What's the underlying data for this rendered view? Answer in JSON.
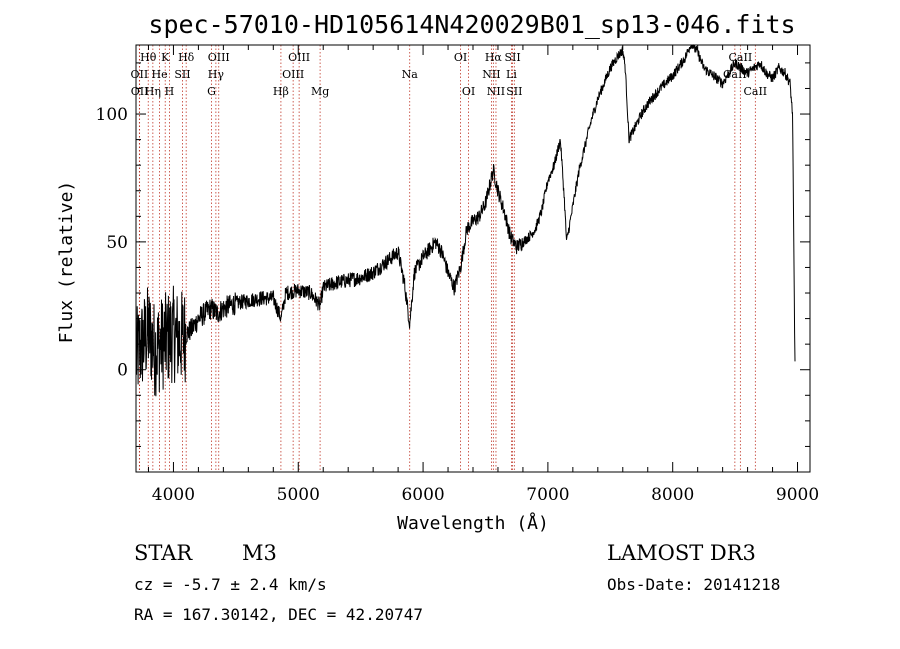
{
  "chart_data": {
    "type": "line",
    "title": "spec-57010-HD105614N420029B01_sp13-046.fits",
    "xlabel": "Wavelength (Å)",
    "ylabel": "Flux (relative)",
    "xlim": [
      3700,
      9100
    ],
    "ylim": [
      -40,
      127
    ],
    "xticks": [
      4000,
      5000,
      6000,
      7000,
      8000,
      9000
    ],
    "yticks": [
      0,
      50,
      100
    ],
    "grid": false,
    "spectrum_knots": {
      "x": [
        3700,
        3750,
        3800,
        3850,
        3900,
        3950,
        4000,
        4050,
        4100,
        4150,
        4200,
        4250,
        4300,
        4350,
        4400,
        4500,
        4600,
        4700,
        4800,
        4862,
        4900,
        5000,
        5100,
        5175,
        5200,
        5300,
        5400,
        5500,
        5600,
        5700,
        5800,
        5850,
        5893,
        5930,
        6000,
        6100,
        6150,
        6200,
        6250,
        6300,
        6350,
        6400,
        6450,
        6500,
        6563,
        6600,
        6650,
        6700,
        6750,
        6800,
        6850,
        6900,
        6950,
        7000,
        7050,
        7100,
        7130,
        7150,
        7200,
        7250,
        7300,
        7350,
        7400,
        7450,
        7500,
        7550,
        7600,
        7620,
        7650,
        7700,
        7750,
        7800,
        7900,
        8000,
        8100,
        8150,
        8200,
        8250,
        8300,
        8350,
        8400,
        8450,
        8500,
        8550,
        8600,
        8650,
        8700,
        8750,
        8800,
        8850,
        8900,
        8940,
        8960,
        8970,
        8980
      ],
      "y": [
        5,
        10,
        15,
        8,
        10,
        12,
        14,
        12,
        14,
        16,
        20,
        22,
        24,
        22,
        24,
        26,
        27,
        28,
        28,
        20,
        30,
        31,
        30,
        25,
        32,
        34,
        35,
        36,
        38,
        42,
        46,
        34,
        18,
        38,
        44,
        50,
        46,
        38,
        32,
        40,
        55,
        58,
        60,
        65,
        78,
        70,
        62,
        52,
        48,
        50,
        52,
        55,
        62,
        74,
        80,
        90,
        68,
        50,
        64,
        78,
        88,
        98,
        106,
        112,
        118,
        122,
        125,
        118,
        90,
        95,
        100,
        104,
        110,
        115,
        122,
        128,
        124,
        118,
        116,
        114,
        112,
        116,
        120,
        118,
        116,
        118,
        120,
        116,
        114,
        118,
        116,
        112,
        100,
        50,
        0
      ]
    },
    "line_markers": [
      {
        "label": "Hθ",
        "wave": 3798,
        "row": 0
      },
      {
        "label": "OII",
        "wave": 3727,
        "row": 1
      },
      {
        "label": "OII",
        "wave": 3729,
        "row": 2
      },
      {
        "label": "He",
        "wave": 3889,
        "row": 1
      },
      {
        "label": "K",
        "wave": 3934,
        "row": 0
      },
      {
        "label": "Hη",
        "wave": 3835,
        "row": 2
      },
      {
        "label": "SII",
        "wave": 4072,
        "row": 1
      },
      {
        "label": "Hδ",
        "wave": 4102,
        "row": 0
      },
      {
        "label": "H",
        "wave": 3968,
        "row": 2
      },
      {
        "label": "OIII",
        "wave": 4363,
        "row": 0
      },
      {
        "label": "Hγ",
        "wave": 4340,
        "row": 1
      },
      {
        "label": "G",
        "wave": 4305,
        "row": 2
      },
      {
        "label": "Hβ",
        "wave": 4861,
        "row": 2
      },
      {
        "label": "OIII",
        "wave": 5007,
        "row": 0
      },
      {
        "label": "OIII",
        "wave": 4959,
        "row": 1
      },
      {
        "label": "Mg",
        "wave": 5175,
        "row": 2
      },
      {
        "label": "Na",
        "wave": 5893,
        "row": 1
      },
      {
        "label": "OI",
        "wave": 6300,
        "row": 0
      },
      {
        "label": "OI",
        "wave": 6364,
        "row": 2
      },
      {
        "label": "Hα",
        "wave": 6563,
        "row": 0
      },
      {
        "label": "NII",
        "wave": 6548,
        "row": 1
      },
      {
        "label": "NII",
        "wave": 6584,
        "row": 2
      },
      {
        "label": "SII",
        "wave": 6717,
        "row": 0
      },
      {
        "label": "Li",
        "wave": 6708,
        "row": 1
      },
      {
        "label": "SII",
        "wave": 6731,
        "row": 2
      },
      {
        "label": "CaII",
        "wave": 8542,
        "row": 0
      },
      {
        "label": "CaII",
        "wave": 8498,
        "row": 1
      },
      {
        "label": "CaII",
        "wave": 8662,
        "row": 2
      }
    ]
  },
  "info": {
    "object_class": "STAR",
    "subclass": "M3",
    "survey": "LAMOST DR3",
    "cz": "cz = -5.7 ± 2.4 km/s",
    "obs_date": "Obs-Date: 20141218",
    "coords": "RA = 167.30142, DEC =  42.20747"
  },
  "colors": {
    "line": "#000000",
    "marker": "#c0392b"
  }
}
